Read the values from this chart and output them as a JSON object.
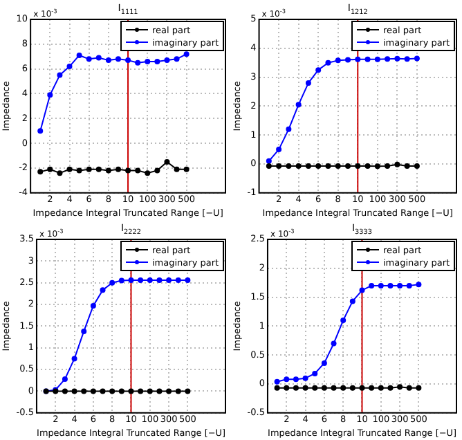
{
  "chart_data": [
    {
      "type": "line",
      "title": "I$_{1111}$",
      "xlabel": "Impedance Integral Truncated Range [−U]",
      "ylabel": "Impedance",
      "annotations": [
        "x 10$^{-3}$"
      ],
      "categories": [
        null,
        "2",
        null,
        "4",
        null,
        "6",
        null,
        "8",
        null,
        "10",
        null,
        "100",
        null,
        "300",
        null,
        "500"
      ],
      "ylim": [
        -4,
        10
      ],
      "yticks": [
        -4,
        -2,
        0,
        2,
        4,
        6,
        8,
        10
      ],
      "grid": true,
      "legend": "top right",
      "marker": "circle",
      "ref_lines": [
        {
          "axis": "x",
          "value": "10",
          "color": "#cc0000"
        }
      ],
      "series": [
        {
          "name": "real part",
          "color": "#000000",
          "values": [
            -2.3,
            -2.1,
            -2.4,
            -2.1,
            -2.2,
            -2.1,
            -2.1,
            -2.2,
            -2.1,
            -2.2,
            -2.2,
            -2.4,
            -2.2,
            -1.5,
            -2.1,
            -2.1
          ]
        },
        {
          "name": "imaginary part",
          "color": "#0000ff",
          "values": [
            1.0,
            3.9,
            5.5,
            6.2,
            7.1,
            6.8,
            6.9,
            6.7,
            6.8,
            6.7,
            6.5,
            6.6,
            6.6,
            6.7,
            6.8,
            7.2
          ]
        }
      ]
    },
    {
      "type": "line",
      "title": "I$_{1212}$",
      "xlabel": "Impedance Integral Truncated Range [−U]",
      "ylabel": "Impedance",
      "annotations": [
        "x 10$^{-3}$"
      ],
      "categories": [
        null,
        "2",
        null,
        "4",
        null,
        "6",
        null,
        "8",
        null,
        "10",
        null,
        "100",
        null,
        "300",
        null,
        "500"
      ],
      "ylim": [
        -1,
        5
      ],
      "yticks": [
        -1,
        0,
        1,
        2,
        3,
        4,
        5
      ],
      "grid": true,
      "legend": "top right",
      "marker": "circle",
      "ref_lines": [
        {
          "axis": "x",
          "value": "10",
          "color": "#cc0000"
        }
      ],
      "series": [
        {
          "name": "real part",
          "color": "#000000",
          "values": [
            -0.07,
            -0.07,
            -0.07,
            -0.07,
            -0.07,
            -0.07,
            -0.07,
            -0.07,
            -0.07,
            -0.07,
            -0.07,
            -0.08,
            -0.07,
            -0.02,
            -0.07,
            -0.07
          ]
        },
        {
          "name": "imaginary part",
          "color": "#0000ff",
          "values": [
            0.1,
            0.5,
            1.2,
            2.05,
            2.8,
            3.25,
            3.5,
            3.58,
            3.6,
            3.62,
            3.62,
            3.62,
            3.63,
            3.64,
            3.63,
            3.65
          ]
        }
      ]
    },
    {
      "type": "line",
      "title": "I$_{2222}$",
      "xlabel": "Impedance Integral Truncated Range [−U]",
      "ylabel": "Impedance",
      "annotations": [
        "x 10$^{-3}$"
      ],
      "categories": [
        null,
        "2",
        null,
        "4",
        null,
        "6",
        null,
        "8",
        null,
        "10",
        null,
        "100",
        null,
        "300",
        null,
        "500"
      ],
      "ylim": [
        -0.5,
        3.5
      ],
      "yticks": [
        -0.5,
        0,
        0.5,
        1,
        1.5,
        2,
        2.5,
        3,
        3.5
      ],
      "grid": true,
      "legend": "top right",
      "marker": "circle",
      "ref_lines": [
        {
          "axis": "x",
          "value": "10",
          "color": "#cc0000"
        }
      ],
      "series": [
        {
          "name": "real part",
          "color": "#000000",
          "values": [
            0,
            0,
            0,
            0,
            0,
            0,
            0,
            0,
            0,
            0,
            0,
            0,
            0,
            0,
            0,
            0
          ]
        },
        {
          "name": "imaginary part",
          "color": "#0000ff",
          "values": [
            0,
            0.03,
            0.28,
            0.75,
            1.38,
            1.97,
            2.33,
            2.5,
            2.55,
            2.56,
            2.56,
            2.56,
            2.56,
            2.56,
            2.56,
            2.56
          ]
        }
      ]
    },
    {
      "type": "line",
      "title": "I$_{3333}$",
      "xlabel": "Impedance Integral Truncated Range [−U]",
      "ylabel": "Impedance",
      "annotations": [
        "x 10$^{-3}$"
      ],
      "categories": [
        null,
        "2",
        null,
        "4",
        null,
        "6",
        null,
        "8",
        null,
        "10",
        null,
        "100",
        null,
        "300",
        null,
        "500"
      ],
      "ylim": [
        -0.5,
        2.5
      ],
      "yticks": [
        -0.5,
        0,
        0.5,
        1,
        1.5,
        2,
        2.5
      ],
      "grid": true,
      "legend": "top right",
      "marker": "circle",
      "ref_lines": [
        {
          "axis": "x",
          "value": "10",
          "color": "#cc0000"
        }
      ],
      "series": [
        {
          "name": "real part",
          "color": "#000000",
          "values": [
            -0.07,
            -0.07,
            -0.07,
            -0.07,
            -0.07,
            -0.07,
            -0.07,
            -0.07,
            -0.07,
            -0.07,
            -0.07,
            -0.07,
            -0.07,
            -0.05,
            -0.07,
            -0.07
          ]
        },
        {
          "name": "imaginary part",
          "color": "#0000ff",
          "values": [
            0.04,
            0.08,
            0.08,
            0.1,
            0.18,
            0.36,
            0.7,
            1.1,
            1.43,
            1.62,
            1.7,
            1.7,
            1.7,
            1.7,
            1.7,
            1.72
          ]
        }
      ]
    }
  ]
}
